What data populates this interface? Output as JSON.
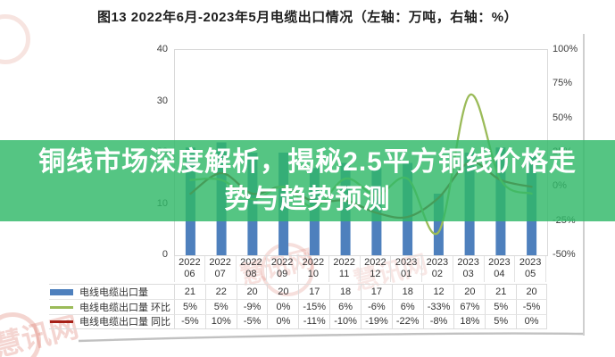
{
  "title": "图13  2022年6月-2023年5月电缆出口情况（左轴：万吨，右轴：%）",
  "banner": {
    "line1": "铜线市场深度解析，揭秘2.5平方铜线价格走",
    "line2": "势与趋势预测",
    "background_color": "#2fb868",
    "text_color": "#ffffff"
  },
  "watermark": {
    "text": "慧讯网"
  },
  "chart_data": {
    "type": "bar",
    "title": "图13 2022年6月-2023年5月电缆出口情况",
    "categories": [
      "2022-06",
      "2022-07",
      "2022-08",
      "2022-09",
      "2022-10",
      "2022-11",
      "2022-12",
      "2023-01",
      "2023-02",
      "2023-03",
      "2023-04",
      "2023-05"
    ],
    "x_labels": [
      {
        "year": "2022",
        "month": "06"
      },
      {
        "year": "2022",
        "month": "07"
      },
      {
        "year": "2022",
        "month": "08"
      },
      {
        "year": "2022",
        "month": "09"
      },
      {
        "year": "2022",
        "month": "10"
      },
      {
        "year": "2022",
        "month": "11"
      },
      {
        "year": "2022",
        "month": "12"
      },
      {
        "year": "2023",
        "month": "01"
      },
      {
        "year": "2023",
        "month": "02"
      },
      {
        "year": "2023",
        "month": "03"
      },
      {
        "year": "2023",
        "month": "04"
      },
      {
        "year": "2023",
        "month": "05"
      }
    ],
    "series": [
      {
        "name": "电线电缆出口量",
        "type": "bar",
        "axis": "left",
        "color": "#4e80bd",
        "values": [
          21,
          22,
          20,
          20,
          17,
          18,
          17,
          18,
          12,
          20,
          21,
          20
        ]
      },
      {
        "name": "电线电缆出口量 环比",
        "type": "line",
        "axis": "right",
        "color": "#9bbb59",
        "values": [
          5,
          5,
          -9,
          0,
          -15,
          6,
          -6,
          6,
          -33,
          67,
          5,
          -5
        ]
      },
      {
        "name": "电线电缆出口量 同比",
        "type": "line",
        "axis": "right",
        "color": "#a62018",
        "values": [
          -5,
          10,
          -5,
          0,
          -11,
          -10,
          -19,
          -22,
          -8,
          18,
          5,
          0
        ]
      }
    ],
    "left_axis": {
      "unit": "万吨",
      "range": [
        0,
        40
      ],
      "ticks": [
        "40",
        "30",
        "20",
        "10",
        "0"
      ]
    },
    "right_axis": {
      "unit": "%",
      "range": [
        -50,
        100
      ],
      "ticks": [
        "100%",
        "75%",
        "50%",
        "25%",
        "0%",
        "-25%",
        "-50%"
      ]
    },
    "grid": "off",
    "legend_position": "table-left"
  },
  "table": {
    "rows": [
      {
        "label": "电线电缆出口量",
        "swatch": "sw-bar",
        "values": [
          "21",
          "22",
          "20",
          "20",
          "17",
          "18",
          "17",
          "18",
          "12",
          "20",
          "21",
          "20"
        ]
      },
      {
        "label": "电线电缆出口量 环比",
        "swatch": "sw-line-green",
        "values": [
          "5%",
          "5%",
          "-9%",
          "0%",
          "-15%",
          "6%",
          "-6%",
          "6%",
          "-33%",
          "67%",
          "5%",
          "-5%"
        ]
      },
      {
        "label": "电线电缆出口量 同比",
        "swatch": "sw-line-red",
        "values": [
          "-5%",
          "10%",
          "-5%",
          "0%",
          "-11%",
          "-10%",
          "-19%",
          "-22%",
          "-8%",
          "18%",
          "5%",
          "0%"
        ]
      }
    ]
  }
}
